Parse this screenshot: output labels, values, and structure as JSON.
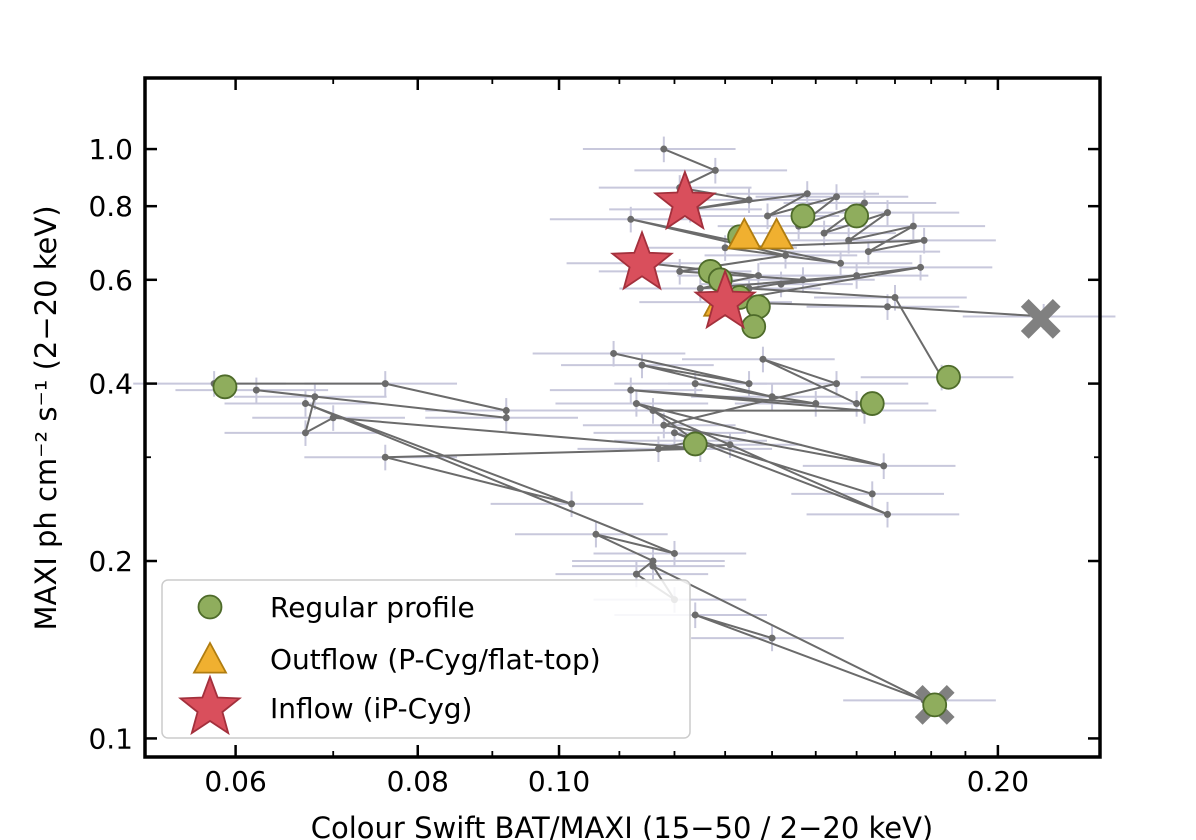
{
  "chart_data": {
    "type": "scatter",
    "title": "",
    "xlabel": "Colour Swift  BAT/MAXI (15−50 / 2−20 keV)",
    "ylabel": "MAXI ph cm⁻² s⁻¹ (2−20 keV)",
    "x_scale": "log",
    "y_scale": "log",
    "xlim": [
      0.052,
      0.235
    ],
    "ylim": [
      0.093,
      1.32
    ],
    "x_ticks": [
      {
        "value": 0.06,
        "label": "0.06"
      },
      {
        "value": 0.08,
        "label": "0.08"
      },
      {
        "value": 0.1,
        "label": "0.10"
      },
      {
        "value": 0.2,
        "label": "0.20"
      }
    ],
    "y_ticks": [
      {
        "value": 0.1,
        "label": "0.1"
      },
      {
        "value": 0.2,
        "label": "0.2"
      },
      {
        "value": 0.4,
        "label": "0.4"
      },
      {
        "value": 0.6,
        "label": "0.6"
      },
      {
        "value": 0.8,
        "label": "0.8"
      },
      {
        "value": 1.0,
        "label": "1.0"
      }
    ],
    "grid": false,
    "legend_position": "bottom-left",
    "colors": {
      "track": "#6b6b6b",
      "errorbar": "#c8c8dc",
      "regular": "#8fad5d",
      "regular_edge": "#4e6b2a",
      "outflow": "#f0b030",
      "outflow_edge": "#b07d10",
      "inflow": "#d94f5c",
      "inflow_edge": "#a3303c",
      "endpoint": "#808080"
    },
    "track": [
      [
        0.118,
        1.0
      ],
      [
        0.128,
        0.92
      ],
      [
        0.121,
        0.86
      ],
      [
        0.135,
        0.82
      ],
      [
        0.123,
        0.79
      ],
      [
        0.148,
        0.84
      ],
      [
        0.139,
        0.77
      ],
      [
        0.155,
        0.83
      ],
      [
        0.146,
        0.74
      ],
      [
        0.162,
        0.81
      ],
      [
        0.152,
        0.72
      ],
      [
        0.168,
        0.78
      ],
      [
        0.158,
        0.7
      ],
      [
        0.175,
        0.74
      ],
      [
        0.163,
        0.67
      ],
      [
        0.178,
        0.7
      ],
      [
        0.13,
        0.68
      ],
      [
        0.156,
        0.64
      ],
      [
        0.112,
        0.76
      ],
      [
        0.143,
        0.66
      ],
      [
        0.121,
        0.62
      ],
      [
        0.147,
        0.6
      ],
      [
        0.135,
        0.58
      ],
      [
        0.17,
        0.56
      ],
      [
        0.183,
        0.41
      ]
    ],
    "track2": [
      [
        0.115,
        0.64
      ],
      [
        0.137,
        0.61
      ],
      [
        0.125,
        0.58
      ],
      [
        0.16,
        0.61
      ],
      [
        0.142,
        0.59
      ],
      [
        0.177,
        0.63
      ],
      [
        0.129,
        0.55
      ],
      [
        0.168,
        0.54
      ],
      [
        0.215,
        0.52
      ]
    ],
    "track3": [
      [
        0.109,
        0.45
      ],
      [
        0.135,
        0.4
      ],
      [
        0.114,
        0.43
      ],
      [
        0.14,
        0.38
      ],
      [
        0.124,
        0.4
      ],
      [
        0.15,
        0.37
      ],
      [
        0.112,
        0.39
      ],
      [
        0.162,
        0.36
      ],
      [
        0.116,
        0.36
      ],
      [
        0.124,
        0.32
      ],
      [
        0.117,
        0.31
      ],
      [
        0.131,
        0.315
      ]
    ],
    "track4": [
      [
        0.16,
        0.37
      ],
      [
        0.138,
        0.44
      ],
      [
        0.155,
        0.4
      ],
      [
        0.118,
        0.34
      ],
      [
        0.167,
        0.29
      ],
      [
        0.113,
        0.37
      ],
      [
        0.168,
        0.24
      ],
      [
        0.12,
        0.33
      ],
      [
        0.164,
        0.26
      ]
    ],
    "track5": [
      [
        0.058,
        0.4
      ],
      [
        0.076,
        0.4
      ],
      [
        0.092,
        0.36
      ],
      [
        0.092,
        0.35
      ],
      [
        0.062,
        0.39
      ],
      [
        0.068,
        0.38
      ],
      [
        0.067,
        0.33
      ],
      [
        0.07,
        0.35
      ],
      [
        0.125,
        0.31
      ],
      [
        0.076,
        0.3
      ],
      [
        0.102,
        0.25
      ],
      [
        0.067,
        0.37
      ],
      [
        0.12,
        0.206
      ],
      [
        0.106,
        0.222
      ],
      [
        0.116,
        0.2
      ],
      [
        0.113,
        0.19
      ],
      [
        0.12,
        0.172
      ],
      [
        0.116,
        0.196
      ],
      [
        0.178,
        0.116
      ],
      [
        0.124,
        0.162
      ],
      [
        0.14,
        0.148
      ]
    ],
    "series": [
      {
        "name": "Regular profile",
        "marker": "circle",
        "points": [
          [
            0.059,
            0.395
          ],
          [
            0.124,
            0.316
          ],
          [
            0.127,
            0.62
          ],
          [
            0.129,
            0.6
          ],
          [
            0.133,
            0.56
          ],
          [
            0.137,
            0.54
          ],
          [
            0.136,
            0.5
          ],
          [
            0.133,
            0.71
          ],
          [
            0.147,
            0.77
          ],
          [
            0.16,
            0.77
          ],
          [
            0.164,
            0.37
          ],
          [
            0.185,
            0.41
          ],
          [
            0.181,
            0.114
          ]
        ]
      },
      {
        "name": "Outflow (P-Cyg/flat-top)",
        "marker": "triangle",
        "points": [
          [
            0.134,
            0.715
          ],
          [
            0.141,
            0.715
          ],
          [
            0.129,
            0.55
          ]
        ]
      },
      {
        "name": "Inflow (iP-Cyg)",
        "marker": "star",
        "points": [
          [
            0.122,
            0.81
          ],
          [
            0.114,
            0.64
          ],
          [
            0.13,
            0.55
          ]
        ]
      }
    ],
    "endpoints": [
      [
        0.214,
        0.515
      ],
      [
        0.181,
        0.114
      ]
    ]
  }
}
